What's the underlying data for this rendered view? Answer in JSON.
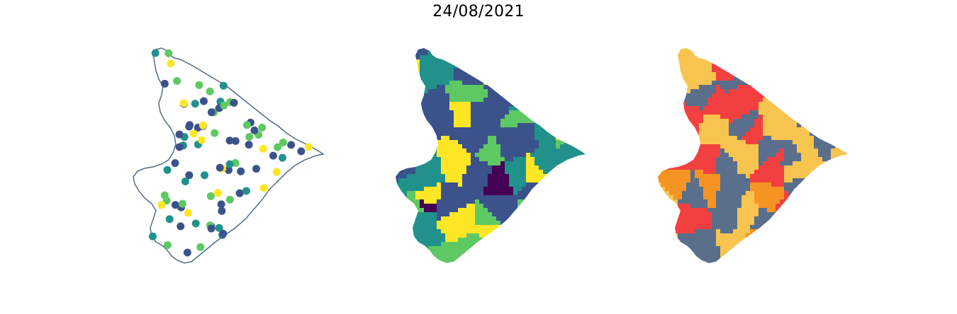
{
  "title": "24/08/2021",
  "palette": {
    "viridis": [
      "#440154",
      "#3b528b",
      "#21918c",
      "#5ec962",
      "#fde725"
    ],
    "categories": [
      "#596f8c",
      "#f7c44f",
      "#f59423",
      "#f24040"
    ],
    "outline": "#556b82"
  },
  "maps": [
    {
      "name": "point-map",
      "type": "scatter"
    },
    {
      "name": "choropleth-map",
      "type": "choropleth"
    },
    {
      "name": "category-map",
      "type": "categorical-choropleth"
    }
  ]
}
